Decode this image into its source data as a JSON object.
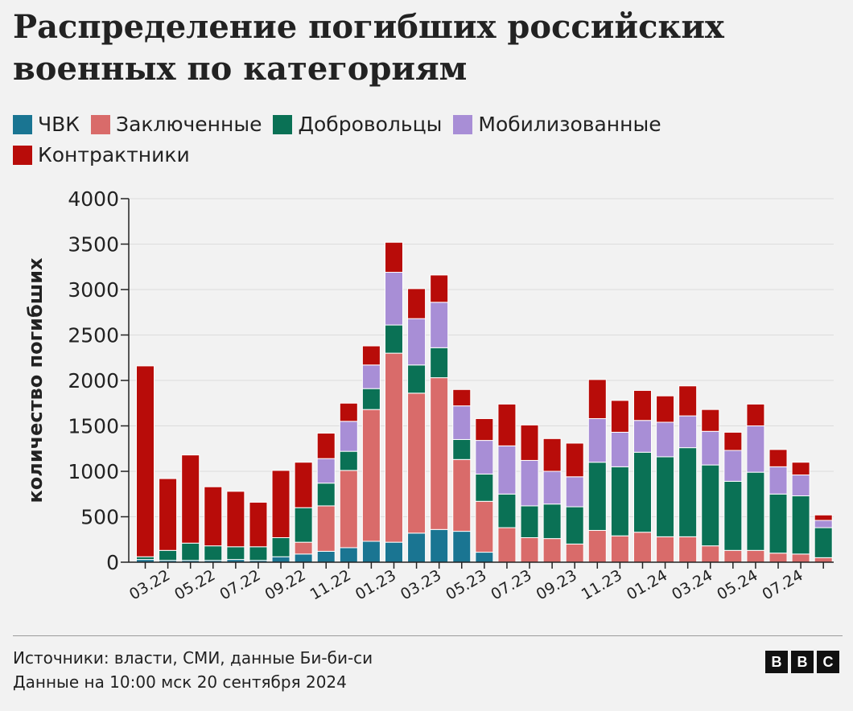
{
  "title": "Распределение погибших российских военных по категориям",
  "legend": [
    {
      "label": "ЧВК",
      "color": "#1a7592"
    },
    {
      "label": "Заключенные",
      "color": "#d96b6a"
    },
    {
      "label": "Добровольцы",
      "color": "#0a7155"
    },
    {
      "label": "Мобилизованные",
      "color": "#a88ed6"
    },
    {
      "label": "Контрактники",
      "color": "#b80c09"
    }
  ],
  "footer": {
    "sources": "Источники: власти, СМИ, данные Би-би-си",
    "date": "Данные на 10:00 мск 20 сентября 2024"
  },
  "logo": {
    "letters": [
      "B",
      "B",
      "C"
    ]
  },
  "chart_data": {
    "type": "bar",
    "stacked": true,
    "title": "Распределение погибших российских военных по категориям",
    "xlabel": "",
    "ylabel": "количество погибших",
    "ylim": [
      0,
      4000
    ],
    "yticks": [
      0,
      500,
      1000,
      1500,
      2000,
      2500,
      3000,
      3500,
      4000
    ],
    "grid": true,
    "legend_position": "top",
    "categories": [
      "02.22",
      "03.22",
      "04.22",
      "05.22",
      "06.22",
      "07.22",
      "08.22",
      "09.22",
      "10.22",
      "11.22",
      "12.22",
      "01.23",
      "02.23",
      "03.23",
      "04.23",
      "05.23",
      "06.23",
      "07.23",
      "08.23",
      "09.23",
      "10.23",
      "11.23",
      "12.23",
      "01.24",
      "02.24",
      "03.24",
      "04.24",
      "05.24",
      "06.24",
      "07.24",
      "08.24"
    ],
    "tick_labels": [
      "03.22",
      "05.22",
      "07.22",
      "09.22",
      "11.22",
      "01.23",
      "03.23",
      "05.23",
      "07.23",
      "09.23",
      "11.23",
      "01.24",
      "03.24",
      "05.24",
      "07.24"
    ],
    "series": [
      {
        "name": "ЧВК",
        "color": "#1a7592",
        "values": [
          30,
          20,
          20,
          20,
          30,
          20,
          60,
          90,
          120,
          160,
          230,
          220,
          320,
          360,
          340,
          110,
          0,
          0,
          0,
          0,
          0,
          0,
          0,
          0,
          0,
          0,
          0,
          0,
          0,
          0,
          0
        ]
      },
      {
        "name": "Заключенные",
        "color": "#d96b6a",
        "values": [
          0,
          0,
          0,
          0,
          0,
          0,
          0,
          130,
          500,
          850,
          1450,
          2080,
          1540,
          1670,
          790,
          560,
          380,
          270,
          260,
          200,
          350,
          290,
          330,
          280,
          280,
          180,
          130,
          130,
          100,
          90,
          50
        ]
      },
      {
        "name": "Добровольцы",
        "color": "#0a7155",
        "values": [
          30,
          110,
          190,
          160,
          140,
          150,
          210,
          380,
          250,
          210,
          230,
          310,
          310,
          330,
          220,
          300,
          370,
          350,
          380,
          410,
          750,
          760,
          880,
          880,
          980,
          890,
          760,
          860,
          650,
          640,
          330
        ]
      },
      {
        "name": "Мобилизованные",
        "color": "#a88ed6",
        "values": [
          0,
          0,
          0,
          0,
          0,
          0,
          0,
          0,
          270,
          330,
          260,
          580,
          510,
          500,
          370,
          370,
          530,
          500,
          360,
          330,
          480,
          380,
          350,
          380,
          350,
          370,
          340,
          510,
          300,
          230,
          80
        ]
      },
      {
        "name": "Контрактники",
        "color": "#b80c09",
        "values": [
          2100,
          790,
          970,
          650,
          610,
          490,
          740,
          500,
          280,
          200,
          210,
          330,
          330,
          300,
          180,
          240,
          460,
          390,
          360,
          370,
          430,
          350,
          330,
          290,
          330,
          240,
          200,
          240,
          190,
          140,
          60
        ]
      }
    ]
  }
}
